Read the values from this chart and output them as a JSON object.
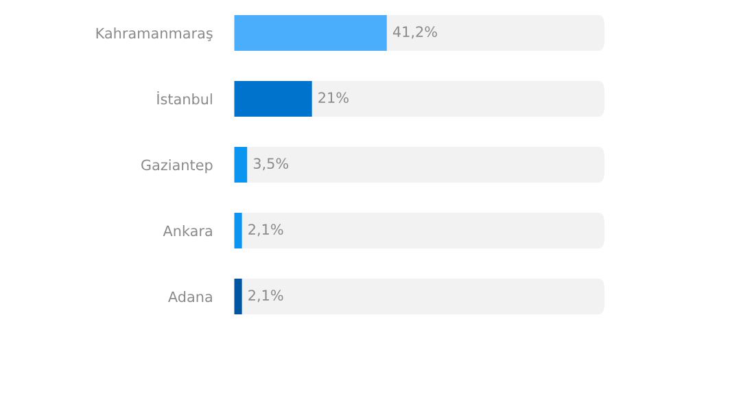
{
  "chart_data": {
    "type": "bar",
    "orientation": "horizontal",
    "categories": [
      "Kahramanmaraş",
      "İstanbul",
      "Gaziantep",
      "Ankara",
      "Adana"
    ],
    "values": [
      41.2,
      21,
      3.5,
      2.1,
      2.1
    ],
    "colors": [
      "#4aaefc",
      "#0074cc",
      "#0a96f0",
      "#0a96f0",
      "#0056a0"
    ],
    "value_labels": [
      "41,2%",
      "21%",
      "3,5%",
      "2,1%",
      "2,1%"
    ],
    "xlim": [
      0,
      100
    ],
    "tick_labels": "y",
    "grid": false,
    "legend": false
  }
}
